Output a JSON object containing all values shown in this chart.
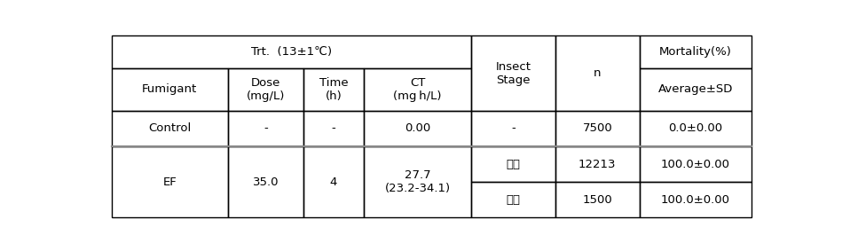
{
  "title_row": "Trt.  (13±1℃)",
  "col0_header": "Fumigant",
  "col1_header": "Dose\n(mg/L)",
  "col2_header": "Time\n(h)",
  "col3_header": "CT\n(mg h/L)",
  "col4_header": "Insect\nStage",
  "col5_header": "n",
  "col6_header": "Mortality(%)",
  "col6_subheader": "Average±SD",
  "control_fumigant": "Control",
  "control_dose": "-",
  "control_time": "-",
  "control_ct": "0.00",
  "control_stage": "-",
  "control_n": "7500",
  "control_mortality": "0.0±0.00",
  "ef_fumigant": "EF",
  "ef_dose": "35.0",
  "ef_time": "4",
  "ef_ct": "27.7\n(23.2-34.1)",
  "ef_stage1": "약충",
  "ef_n1": "12213",
  "ef_mortality1": "100.0±0.00",
  "ef_stage2": "성충",
  "ef_n2": "1500",
  "ef_mortality2": "100.0±0.00",
  "font_size": 9.5,
  "border_lw": 1.0,
  "thick_border_lw": 1.5
}
